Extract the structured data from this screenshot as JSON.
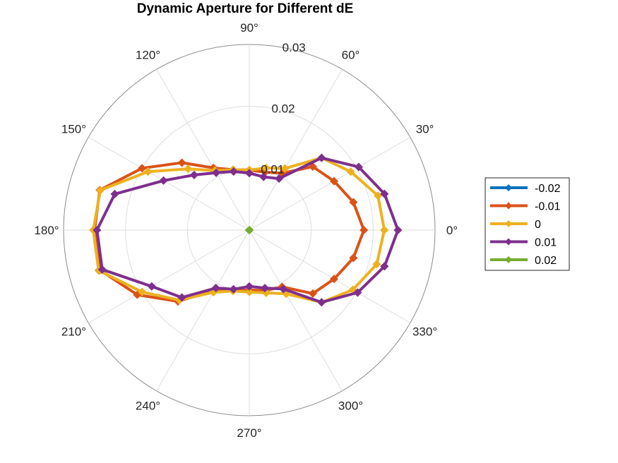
{
  "chart_data": {
    "type": "polar-line",
    "title": "Dynamic Aperture for Different dE",
    "angle_ticks": [
      {
        "deg": 0,
        "label": "0°"
      },
      {
        "deg": 30,
        "label": "30°"
      },
      {
        "deg": 60,
        "label": "60°"
      },
      {
        "deg": 90,
        "label": "90°"
      },
      {
        "deg": 120,
        "label": "120°"
      },
      {
        "deg": 150,
        "label": "150°"
      },
      {
        "deg": 180,
        "label": "180°"
      },
      {
        "deg": 210,
        "label": "210°"
      },
      {
        "deg": 240,
        "label": "240°"
      },
      {
        "deg": 270,
        "label": "270°"
      },
      {
        "deg": 300,
        "label": "300°"
      },
      {
        "deg": 330,
        "label": "330°"
      }
    ],
    "radial_ticks": [
      {
        "value": 0.01,
        "label": "0.01"
      },
      {
        "value": 0.02,
        "label": "0.02"
      },
      {
        "value": 0.03,
        "label": "0.03"
      }
    ],
    "rlim": [
      0,
      0.03
    ],
    "grid": true,
    "legend_position": "right",
    "theta_deg": [
      0,
      15,
      30,
      45,
      60,
      75,
      90,
      105,
      120,
      135,
      150,
      165,
      180,
      195,
      210,
      225,
      240,
      255,
      270,
      285,
      300,
      315,
      330,
      345,
      360
    ],
    "series": [
      {
        "name": "-0.02",
        "color": "#0072BD",
        "r": [
          0,
          0,
          0,
          0,
          0,
          0,
          0,
          0,
          0,
          0,
          0,
          0,
          0,
          0,
          0,
          0,
          0,
          0,
          0,
          0,
          0,
          0,
          0,
          0,
          0
        ]
      },
      {
        "name": "-0.01",
        "color": "#D95319",
        "r": [
          0.0185,
          0.0174,
          0.0158,
          0.0145,
          0.0106,
          0.0097,
          0.0097,
          0.0101,
          0.0116,
          0.0154,
          0.02,
          0.025,
          0.025,
          0.025,
          0.0209,
          0.0163,
          0.0112,
          0.0101,
          0.0097,
          0.0101,
          0.0106,
          0.0145,
          0.0158,
          0.0174,
          0.0185
        ]
      },
      {
        "name": "0",
        "color": "#EDB120",
        "r": [
          0.0218,
          0.0215,
          0.0189,
          0.0165,
          0.0115,
          0.0104,
          0.0097,
          0.0101,
          0.0111,
          0.014,
          0.0189,
          0.0249,
          0.0252,
          0.0252,
          0.02,
          0.016,
          0.0116,
          0.0102,
          0.01,
          0.0105,
          0.0119,
          0.0165,
          0.0193,
          0.0213,
          0.0218
        ]
      },
      {
        "name": "0.01",
        "color": "#7E2F8E",
        "r": [
          0.024,
          0.0226,
          0.0204,
          0.0165,
          0.0096,
          0.0089,
          0.0092,
          0.0098,
          0.0107,
          0.0126,
          0.016,
          0.0225,
          0.0246,
          0.0246,
          0.0182,
          0.0154,
          0.0108,
          0.0099,
          0.0091,
          0.0097,
          0.011,
          0.0165,
          0.0202,
          0.0226,
          0.024
        ]
      },
      {
        "name": "0.02",
        "color": "#77AC30",
        "r": [
          0,
          0,
          0,
          0,
          0,
          0,
          0,
          0,
          0,
          0,
          0,
          0,
          0,
          0,
          0,
          0,
          0,
          0,
          0,
          0,
          0,
          0,
          0,
          0,
          0
        ]
      }
    ]
  }
}
